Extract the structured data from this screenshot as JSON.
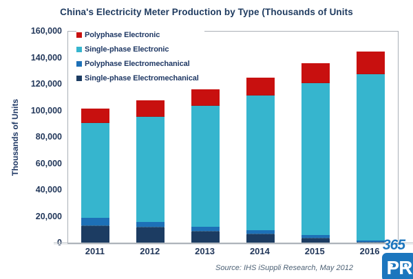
{
  "title": "China's Electricity Meter Production by Type (Thousands of Units",
  "y_axis": {
    "title": "Thousands of Units",
    "ticks": [
      "160,000",
      "140,000",
      "120,000",
      "100,000",
      "80,000",
      "60,000",
      "40,000",
      "20,000",
      "0"
    ]
  },
  "legend": {
    "items": [
      {
        "label": "Polyphase Electronic",
        "color": "#C8100F"
      },
      {
        "label": "Single-phase Electronic",
        "color": "#36B5CE"
      },
      {
        "label": "Polyphase Electromechanical",
        "color": "#1D70B7"
      },
      {
        "label": "Single-phase Electromechanical",
        "color": "#1C3C62"
      }
    ]
  },
  "source": "Source: IHS iSuppli Research, May 2012",
  "logo": {
    "line1": "365",
    "badge": "PR"
  },
  "chart_data": {
    "type": "bar",
    "stacked": true,
    "title": "China's Electricity Meter Production by Type (Thousands of Units",
    "xlabel": "",
    "ylabel": "Thousands of Units",
    "ylim": [
      0,
      160000
    ],
    "grid": false,
    "legend_position": "top-left",
    "categories": [
      "2011",
      "2012",
      "2013",
      "2014",
      "2015",
      "2016"
    ],
    "series": [
      {
        "name": "Single-phase Electromechanical",
        "color": "#1C3C62",
        "textured": true,
        "values": [
          13500,
          12500,
          9500,
          7500,
          4000,
          1000
        ]
      },
      {
        "name": "Polyphase Electromechanical",
        "color": "#1D70B7",
        "values": [
          5500,
          3500,
          3000,
          2500,
          2000,
          1000
        ]
      },
      {
        "name": "Single-phase Electronic",
        "color": "#36B5CE",
        "values": [
          72000,
          79500,
          91500,
          101500,
          115000,
          126000
        ]
      },
      {
        "name": "Polyphase Electronic",
        "color": "#C8100F",
        "values": [
          11000,
          12500,
          12500,
          13500,
          15000,
          17000
        ]
      }
    ],
    "totals": [
      102000,
      108000,
      116500,
      125000,
      136000,
      145000
    ]
  }
}
